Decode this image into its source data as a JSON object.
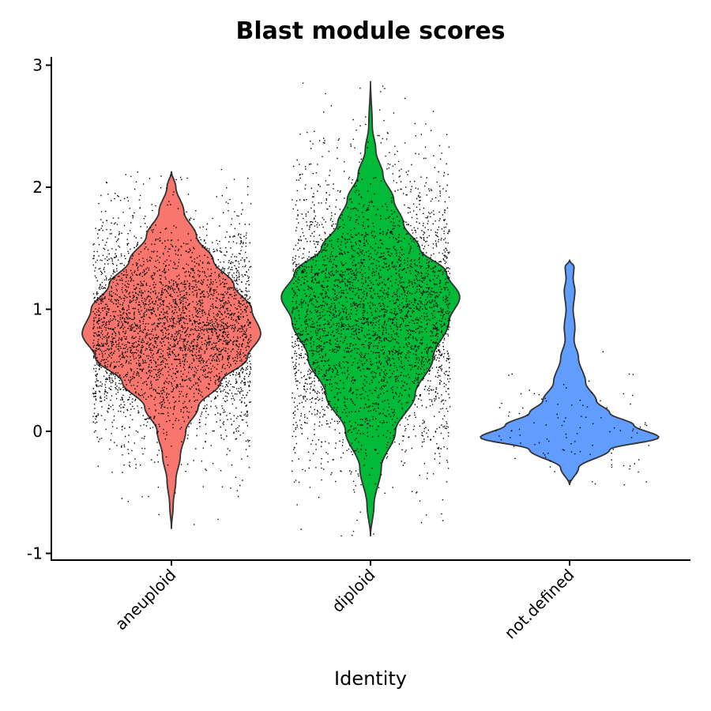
{
  "chart_data": {
    "type": "violin",
    "title": "Blast module scores",
    "xlabel": "Identity",
    "ylabel": "",
    "ylim": [
      -1.05,
      3.05
    ],
    "yticks": [
      -1,
      0,
      1,
      2,
      3
    ],
    "ytick_labels": [
      "-1",
      "0",
      "1",
      "2",
      "3"
    ],
    "grid": false,
    "legend": "none",
    "categories": [
      "aneuploid",
      "diploid",
      "not.defined"
    ],
    "series": [
      {
        "category": "aneuploid",
        "color": "#F8766D",
        "min": -0.8,
        "max": 2.13,
        "density": [
          [
            -0.8,
            0.0
          ],
          [
            -0.6,
            0.02
          ],
          [
            -0.4,
            0.05
          ],
          [
            -0.2,
            0.1
          ],
          [
            0.0,
            0.16
          ],
          [
            0.2,
            0.3
          ],
          [
            0.4,
            0.55
          ],
          [
            0.6,
            0.85
          ],
          [
            0.8,
            1.0
          ],
          [
            1.0,
            0.9
          ],
          [
            1.2,
            0.7
          ],
          [
            1.4,
            0.47
          ],
          [
            1.6,
            0.28
          ],
          [
            1.8,
            0.14
          ],
          [
            2.0,
            0.05
          ],
          [
            2.13,
            0.0
          ]
        ],
        "jitter": {
          "count": 3600,
          "center": 0.82,
          "spread": 0.45,
          "min": -0.8,
          "max": 2.15
        }
      },
      {
        "category": "diploid",
        "color": "#00BA38",
        "min": -0.86,
        "max": 2.87,
        "density": [
          [
            -0.86,
            0.0
          ],
          [
            -0.6,
            0.04
          ],
          [
            -0.3,
            0.12
          ],
          [
            0.0,
            0.28
          ],
          [
            0.3,
            0.5
          ],
          [
            0.6,
            0.7
          ],
          [
            0.9,
            0.88
          ],
          [
            1.1,
            1.0
          ],
          [
            1.3,
            0.85
          ],
          [
            1.5,
            0.55
          ],
          [
            1.7,
            0.37
          ],
          [
            1.9,
            0.26
          ],
          [
            2.1,
            0.14
          ],
          [
            2.3,
            0.06
          ],
          [
            2.5,
            0.02
          ],
          [
            2.87,
            0.0
          ]
        ],
        "jitter": {
          "count": 6000,
          "center": 0.95,
          "spread": 0.6,
          "min": -0.86,
          "max": 2.87
        }
      },
      {
        "category": "not.defined",
        "color": "#619CFF",
        "min": -0.44,
        "max": 1.4,
        "density": [
          [
            -0.44,
            0.0
          ],
          [
            -0.3,
            0.1
          ],
          [
            -0.15,
            0.45
          ],
          [
            -0.05,
            1.0
          ],
          [
            0.05,
            0.72
          ],
          [
            0.15,
            0.45
          ],
          [
            0.25,
            0.3
          ],
          [
            0.4,
            0.18
          ],
          [
            0.6,
            0.1
          ],
          [
            0.75,
            0.05
          ],
          [
            0.85,
            0.06
          ],
          [
            1.0,
            0.04
          ],
          [
            1.15,
            0.06
          ],
          [
            1.25,
            0.04
          ],
          [
            1.35,
            0.05
          ],
          [
            1.4,
            0.0
          ]
        ],
        "jitter": {
          "count": 110,
          "center": 0.0,
          "spread": 0.25,
          "min": -0.44,
          "max": 1.4
        }
      }
    ]
  }
}
